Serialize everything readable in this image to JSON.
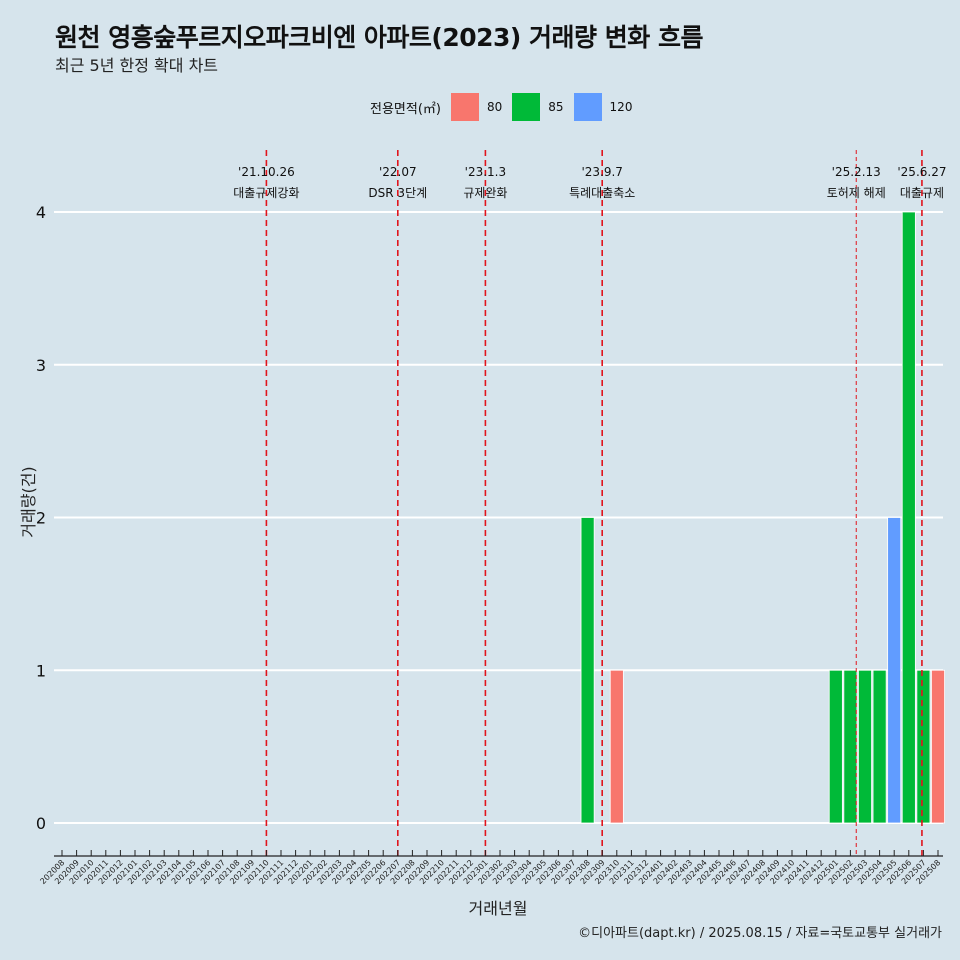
{
  "title": "원천 영흥숲푸르지오파크비엔 아파트(2023) 거래량 변화 흐름",
  "subtitle": "최근 5년 한정 확대 차트",
  "legend": {
    "title": "전용면적(㎡)",
    "items": [
      {
        "label": "80",
        "color": "#F8766D"
      },
      {
        "label": "85",
        "color": "#00BA38"
      },
      {
        "label": "120",
        "color": "#619CFF"
      }
    ]
  },
  "credit": "©디아파트(dapt.kr) / 2025.08.15 / 자료=국토교통부 실거래가",
  "chart_data": {
    "type": "bar",
    "stacked": true,
    "xlabel": "거래년월",
    "ylabel": "거래량(건)",
    "ylim": [
      0,
      4
    ],
    "y_ticks": [
      0,
      1,
      2,
      3,
      4
    ],
    "grid": "horizontal",
    "legend_position": "top",
    "categories": [
      "202008",
      "202009",
      "202010",
      "202011",
      "202012",
      "202101",
      "202102",
      "202103",
      "202104",
      "202105",
      "202106",
      "202107",
      "202108",
      "202109",
      "202110",
      "202111",
      "202112",
      "202201",
      "202202",
      "202203",
      "202204",
      "202205",
      "202206",
      "202207",
      "202208",
      "202209",
      "202210",
      "202211",
      "202212",
      "202301",
      "202302",
      "202303",
      "202304",
      "202305",
      "202306",
      "202307",
      "202308",
      "202309",
      "202310",
      "202311",
      "202312",
      "202401",
      "202402",
      "202403",
      "202404",
      "202405",
      "202406",
      "202407",
      "202408",
      "202409",
      "202410",
      "202411",
      "202412",
      "202501",
      "202502",
      "202503",
      "202504",
      "202505",
      "202506",
      "202507",
      "202508"
    ],
    "series": [
      {
        "name": "80",
        "color": "#F8766D",
        "values": [
          0,
          0,
          0,
          0,
          0,
          0,
          0,
          0,
          0,
          0,
          0,
          0,
          0,
          0,
          0,
          0,
          0,
          0,
          0,
          0,
          0,
          0,
          0,
          0,
          0,
          0,
          0,
          0,
          0,
          0,
          0,
          0,
          0,
          0,
          0,
          0,
          0,
          0,
          1,
          0,
          0,
          0,
          0,
          0,
          0,
          0,
          0,
          0,
          0,
          0,
          0,
          0,
          0,
          0,
          0,
          0,
          0,
          0,
          0,
          0,
          1
        ]
      },
      {
        "name": "85",
        "color": "#00BA38",
        "values": [
          0,
          0,
          0,
          0,
          0,
          0,
          0,
          0,
          0,
          0,
          0,
          0,
          0,
          0,
          0,
          0,
          0,
          0,
          0,
          0,
          0,
          0,
          0,
          0,
          0,
          0,
          0,
          0,
          0,
          0,
          0,
          0,
          0,
          0,
          0,
          0,
          2,
          0,
          0,
          0,
          0,
          0,
          0,
          0,
          0,
          0,
          0,
          0,
          0,
          0,
          0,
          0,
          0,
          1,
          1,
          1,
          1,
          0,
          4,
          1,
          0
        ]
      },
      {
        "name": "120",
        "color": "#619CFF",
        "values": [
          0,
          0,
          0,
          0,
          0,
          0,
          0,
          0,
          0,
          0,
          0,
          0,
          0,
          0,
          0,
          0,
          0,
          0,
          0,
          0,
          0,
          0,
          0,
          0,
          0,
          0,
          0,
          0,
          0,
          0,
          0,
          0,
          0,
          0,
          0,
          0,
          0,
          0,
          0,
          0,
          0,
          0,
          0,
          0,
          0,
          0,
          0,
          0,
          0,
          0,
          0,
          0,
          0,
          0,
          0,
          0,
          0,
          2,
          0,
          0,
          0
        ]
      }
    ],
    "events": [
      {
        "pos": 14.0,
        "date": "'21.10.26",
        "label": "대출규제강화",
        "style": "thick"
      },
      {
        "pos": 23.0,
        "date": "'22.07",
        "label": "DSR 3단계",
        "style": "thick"
      },
      {
        "pos": 29.0,
        "date": "'23.1.3",
        "label": "규제완화",
        "style": "thick"
      },
      {
        "pos": 37.0,
        "date": "'23.9.7",
        "label": "특례대출축소",
        "style": "thick"
      },
      {
        "pos": 54.4,
        "date": "'25.2.13",
        "label": "토허제 해제",
        "style": "thin"
      },
      {
        "pos": 58.9,
        "date": "'25.6.27",
        "label": "대출규제",
        "style": "thick"
      }
    ]
  }
}
